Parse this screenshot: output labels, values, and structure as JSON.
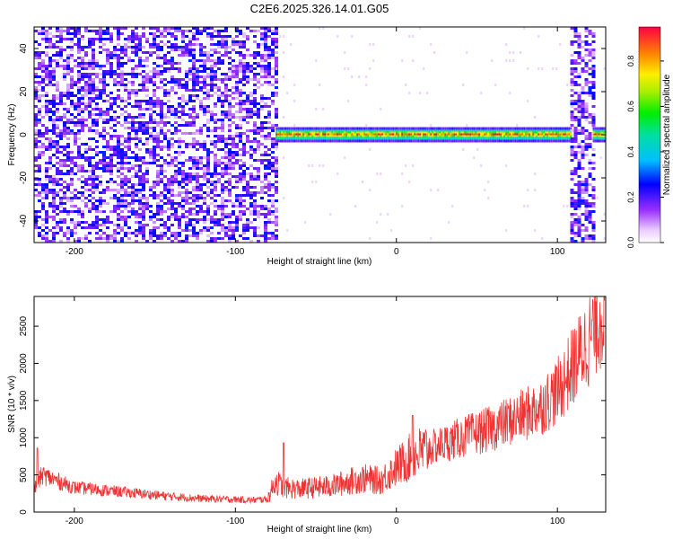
{
  "title": "C2E6.2025.326.14.01.G05",
  "chart_data": [
    {
      "type": "heatmap",
      "xlabel": "Height of straight line (km)",
      "ylabel": "Frequency (Hz)",
      "xlim": [
        -225,
        130
      ],
      "ylim": [
        -50,
        50
      ],
      "xticks": [
        -200,
        -100,
        0,
        100
      ],
      "yticks": [
        -40,
        -20,
        0,
        20,
        40
      ],
      "regions": [
        {
          "from": -225,
          "to": -75,
          "pattern": "broadband-noise",
          "level": 0.1
        },
        {
          "from": -75,
          "to": 108,
          "pattern": "narrow-line-near-0Hz",
          "level": 0.9
        },
        {
          "from": 108,
          "to": 122,
          "pattern": "broadband-noise",
          "level": 0.1
        },
        {
          "from": 122,
          "to": 130,
          "pattern": "narrow-line-near-0Hz",
          "level": 0.9
        }
      ],
      "colorbar": {
        "label": "Normalized spectral amplitude",
        "range": [
          0,
          0.95
        ],
        "ticks": [
          0.0,
          0.2,
          0.4,
          0.6,
          0.8
        ],
        "tick_labels": [
          "0.0",
          "0.2",
          "0.4",
          "0.6",
          "0.8"
        ]
      }
    },
    {
      "type": "line",
      "xlabel": "Height of straight line (km)",
      "ylabel": "SNR (10 * v/v)",
      "xlim": [
        -225,
        130
      ],
      "ylim": [
        0,
        2900
      ],
      "xticks": [
        -200,
        -100,
        0,
        100
      ],
      "yticks": [
        0,
        500,
        1000,
        1500,
        2000,
        2500
      ],
      "color": "#ee3333",
      "series": [
        {
          "x": [
            -225,
            -220,
            -200,
            -180,
            -160,
            -140,
            -120,
            -100,
            -90,
            -80,
            -75,
            -70,
            -60,
            -50,
            -40,
            -30,
            -20,
            -10,
            0,
            10,
            20,
            40,
            60,
            80,
            90,
            100,
            110,
            120,
            130
          ],
          "y": [
            300,
            500,
            330,
            290,
            250,
            210,
            180,
            170,
            160,
            175,
            420,
            330,
            310,
            330,
            350,
            410,
            450,
            420,
            600,
            760,
            850,
            1000,
            1130,
            1310,
            1420,
            1620,
            1970,
            2340,
            2790
          ]
        }
      ]
    }
  ]
}
